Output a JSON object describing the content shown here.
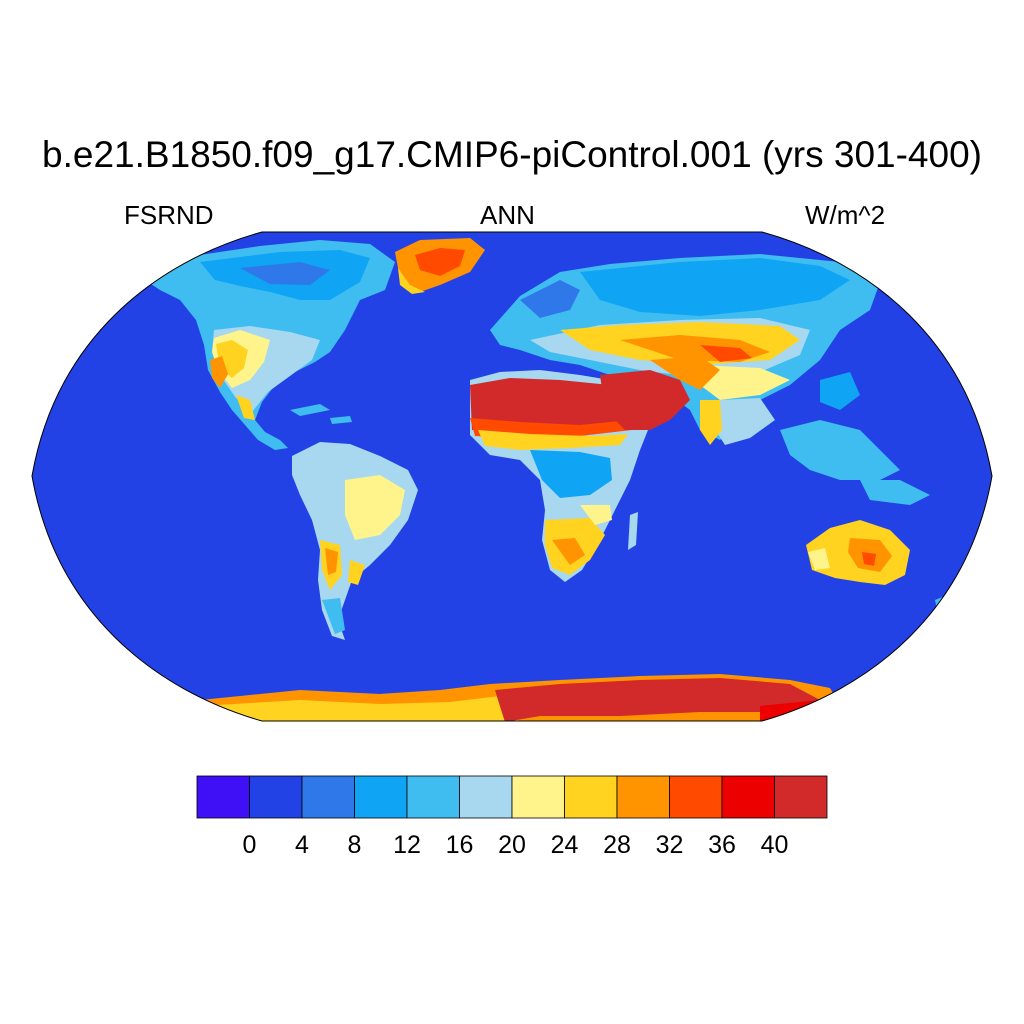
{
  "title": "b.e21.B1850.f09_g17.CMIP6-piControl.001 (yrs 301-400)",
  "left_label": "FSRND",
  "center_label": "ANN",
  "right_label": "W/m^2",
  "projection": "robinson",
  "colorbar": {
    "colors": [
      "#3f0ff5",
      "#2342e6",
      "#2f78ea",
      "#10a4f4",
      "#40bdf0",
      "#a7d8ef",
      "#fff48c",
      "#ffd320",
      "#ff9400",
      "#ff4a00",
      "#ec0000",
      "#d22a2a"
    ],
    "labels": [
      "0",
      "4",
      "8",
      "12",
      "16",
      "20",
      "24",
      "28",
      "32",
      "36",
      "40"
    ]
  },
  "colors": {
    "ocean": "#2342e6",
    "coastline": "#000000"
  }
}
